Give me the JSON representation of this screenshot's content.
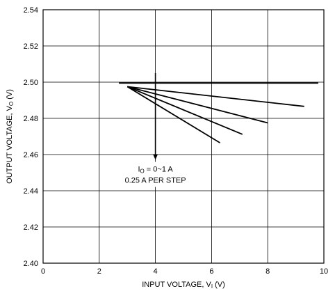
{
  "chart_data": {
    "type": "line",
    "title": "",
    "xlabel": {
      "main": "INPUT VOLTAGE, V",
      "sub": "I",
      "suffix": " (V)"
    },
    "ylabel": {
      "main": "OUTPUT VOLTAGE, V",
      "sub": "O",
      "suffix": " (V)"
    },
    "xlim": [
      0,
      10
    ],
    "ylim": [
      2.4,
      2.54
    ],
    "xticks": [
      "0",
      "2",
      "4",
      "6",
      "8",
      "10"
    ],
    "yticks": [
      "2.40",
      "2.42",
      "2.44",
      "2.46",
      "2.48",
      "2.50",
      "2.52",
      "2.54"
    ],
    "grid": true,
    "series": [
      {
        "x": [
          2.7,
          9.8
        ],
        "y": [
          2.4995,
          2.4995
        ]
      },
      {
        "x": [
          3.0,
          9.3
        ],
        "y": [
          2.4975,
          2.4866
        ]
      },
      {
        "x": [
          3.0,
          8.0
        ],
        "y": [
          2.4975,
          2.4775
        ]
      },
      {
        "x": [
          3.0,
          7.1
        ],
        "y": [
          2.4975,
          2.4712
        ]
      },
      {
        "x": [
          3.0,
          6.3
        ],
        "y": [
          2.4975,
          2.4665
        ]
      }
    ],
    "annotation": {
      "line1_main": "I",
      "line1_sub": "O",
      "line1_rest": " = 0~1 A",
      "line2": "0.25 A PER STEP",
      "arrow_x": 4.0,
      "arrow_from_y": 2.505,
      "arrow_to_y": 2.4575
    }
  }
}
